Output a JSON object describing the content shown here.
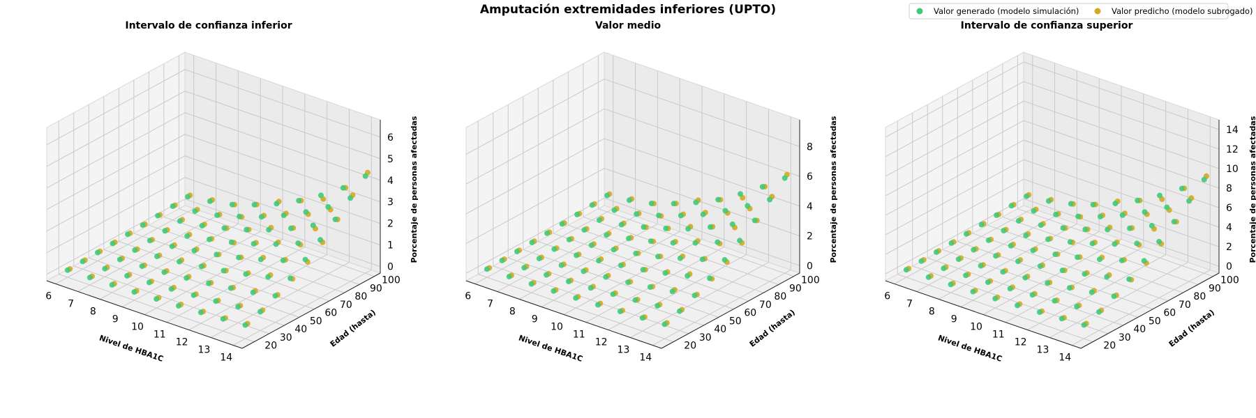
{
  "colors": {
    "generated": "#3fc97a",
    "predicted": "#d4aa1f"
  },
  "chart_data": {
    "type": "scatter",
    "title": "Amputación extremidades inferiores (UPTO)",
    "legend": {
      "position": "top-right",
      "entries": [
        "Valor generado (modelo simulación)",
        "Valor predicho (modelo subrogado)"
      ]
    },
    "panels": [
      {
        "title": "Intervalo de confianza inferior",
        "xlabel": "Nivel de HBA1C",
        "ylabel": "Edad (hasta)",
        "zlabel": "Porcentaje de personas afectadas",
        "x_ticks": [
          "6",
          "7",
          "8",
          "9",
          "10",
          "11",
          "12",
          "13",
          "14"
        ],
        "y_ticks": [
          "20",
          "30",
          "40",
          "50",
          "60",
          "70",
          "80",
          "90",
          "100"
        ],
        "z_ticks": [
          "0",
          "1",
          "2",
          "3",
          "4",
          "5",
          "6"
        ],
        "xlim": [
          5.6,
          14.4
        ],
        "ylim": [
          12,
          104
        ],
        "zlim": [
          -0.3,
          6.8
        ],
        "z_max": [
          0.4,
          0.55,
          0.75,
          1.1,
          1.5,
          2.0,
          2.6,
          3.3,
          4.2
        ]
      },
      {
        "title": "Valor medio",
        "xlabel": "Nivel de HBA1C",
        "ylabel": "Edad (hasta)",
        "zlabel": "Porcentaje de personas afectadas",
        "x_ticks": [
          "6",
          "7",
          "8",
          "9",
          "10",
          "11",
          "12",
          "13",
          "14"
        ],
        "y_ticks": [
          "20",
          "30",
          "40",
          "50",
          "60",
          "70",
          "80",
          "90",
          "100"
        ],
        "z_ticks": [
          "0",
          "2",
          "4",
          "6",
          "8"
        ],
        "xlim": [
          5.6,
          14.4
        ],
        "ylim": [
          12,
          104
        ],
        "zlim": [
          -0.5,
          9.8
        ],
        "z_max": [
          0.6,
          0.8,
          1.1,
          1.6,
          2.2,
          2.9,
          3.8,
          4.8,
          5.9
        ]
      },
      {
        "title": "Intervalo de confianza superior",
        "xlabel": "Nivel de HBA1C",
        "ylabel": "Edad (hasta)",
        "zlabel": "Porcentaje de personas afectadas",
        "x_ticks": [
          "6",
          "7",
          "8",
          "9",
          "10",
          "11",
          "12",
          "13",
          "14"
        ],
        "y_ticks": [
          "20",
          "30",
          "40",
          "50",
          "60",
          "70",
          "80",
          "90",
          "100"
        ],
        "z_ticks": [
          "0",
          "2",
          "4",
          "6",
          "8",
          "10",
          "12",
          "14"
        ],
        "xlim": [
          5.6,
          14.4
        ],
        "ylim": [
          12,
          104
        ],
        "zlim": [
          -0.7,
          15
        ],
        "z_max": [
          0.9,
          1.2,
          1.7,
          2.4,
          3.3,
          4.4,
          5.7,
          7.2,
          8.9
        ]
      }
    ],
    "series_note_x": [
      6,
      7,
      8,
      9,
      10,
      11,
      12,
      13,
      14
    ],
    "series_note_y": [
      20,
      30,
      40,
      50,
      60,
      70,
      80,
      90,
      100
    ]
  }
}
